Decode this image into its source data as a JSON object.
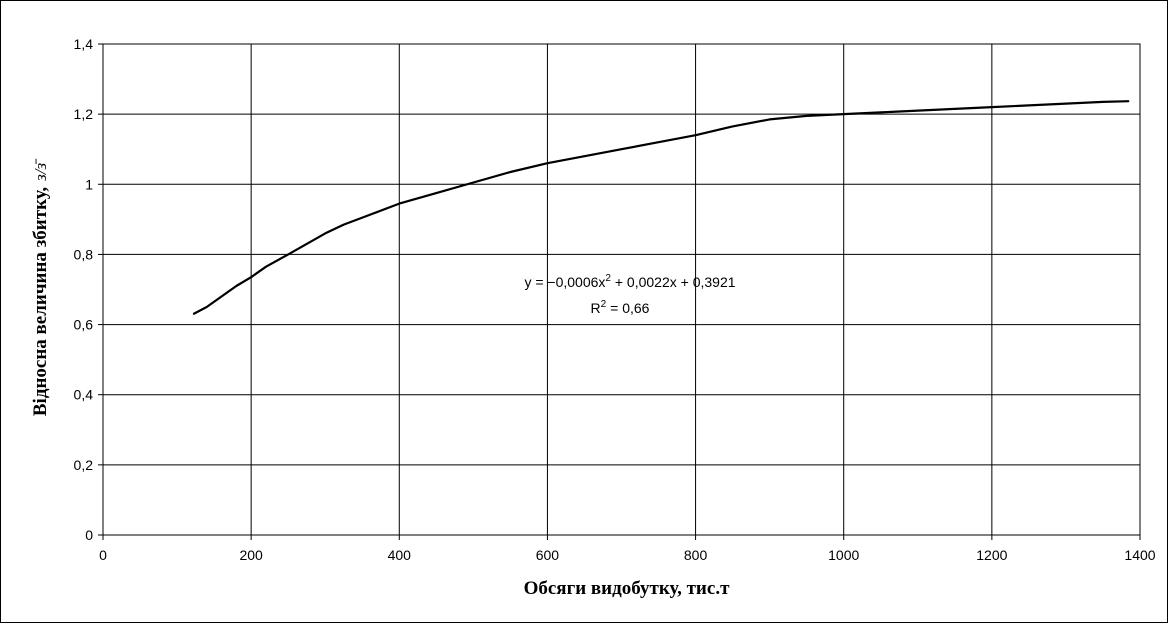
{
  "chart_data": {
    "type": "line",
    "title": "",
    "xlabel": "Обсяги видобутку, тис.т",
    "ylabel": "Відносна величина збитку,",
    "ylabel_unit": "з/з̄",
    "xlim": [
      0,
      1400
    ],
    "ylim": [
      0,
      1.4
    ],
    "grid": true,
    "legend": "none",
    "x_ticks": [
      0,
      200,
      400,
      600,
      800,
      1000,
      1200,
      1400
    ],
    "x_tick_labels": [
      "0",
      "200",
      "400",
      "600",
      "800",
      "1000",
      "1200",
      "1400"
    ],
    "y_ticks": [
      0,
      0.2,
      0.4,
      0.6,
      0.8,
      1.0,
      1.2,
      1.4
    ],
    "y_tick_labels": [
      "0",
      "0,2",
      "0,4",
      "0,6",
      "0,8",
      "1",
      "1,2",
      "1,4"
    ],
    "series": [
      {
        "x": [
          122,
          140,
          160,
          180,
          200,
          220,
          250,
          275,
          300,
          325,
          350,
          400,
          450,
          500,
          550,
          600,
          650,
          700,
          750,
          800,
          850,
          900,
          950,
          1000,
          1050,
          1100,
          1150,
          1200,
          1250,
          1300,
          1350,
          1385
        ],
        "y": [
          0.63,
          0.65,
          0.68,
          0.71,
          0.735,
          0.765,
          0.8,
          0.83,
          0.86,
          0.885,
          0.905,
          0.945,
          0.975,
          1.005,
          1.035,
          1.06,
          1.08,
          1.1,
          1.12,
          1.14,
          1.165,
          1.185,
          1.195,
          1.2,
          1.205,
          1.21,
          1.215,
          1.22,
          1.225,
          1.23,
          1.235,
          1.237
        ],
        "color": "#000000"
      }
    ],
    "annotations": {
      "equation_prefix": "y = −0,0006x",
      "equation_sup": "2",
      "equation_suffix": " + 0,0022x + 0,3921",
      "r2_prefix": "R",
      "r2_sup": "2",
      "r2_suffix": " = 0,66"
    }
  }
}
